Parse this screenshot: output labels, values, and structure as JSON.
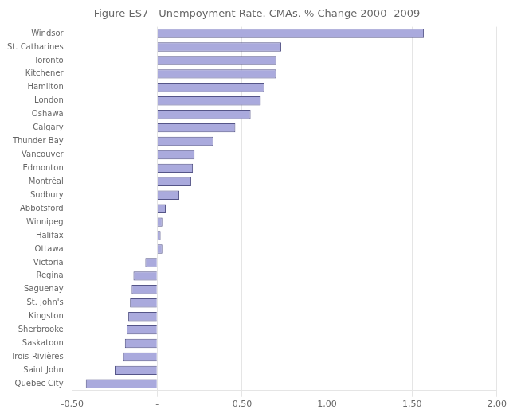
{
  "chart_data": {
    "type": "bar",
    "orientation": "horizontal",
    "title": "Figure ES7 - Unempoyment Rate. CMAs. % Change 2000- 2009",
    "categories": [
      "Windsor",
      "St. Catharines",
      "Toronto",
      "Kitchener",
      "Hamilton",
      "London",
      "Oshawa",
      "Calgary",
      "Thunder Bay",
      "Vancouver",
      "Edmonton",
      "Montréal",
      "Sudbury",
      "Abbotsford",
      "Winnipeg",
      "Halifax",
      "Ottawa",
      "Victoria",
      "Regina",
      "Saguenay",
      "St. John's",
      "Kingston",
      "Sherbrooke",
      "Saskatoon",
      "Trois-Rivières",
      "Saint John",
      "Quebec City"
    ],
    "values": [
      1.57,
      0.73,
      0.7,
      0.7,
      0.63,
      0.61,
      0.55,
      0.46,
      0.33,
      0.22,
      0.21,
      0.2,
      0.13,
      0.05,
      0.03,
      0.02,
      0.03,
      -0.07,
      -0.14,
      -0.15,
      -0.16,
      -0.17,
      -0.18,
      -0.19,
      -0.2,
      -0.25,
      -0.42
    ],
    "color": "#aaaadd",
    "xlim": [
      -0.5,
      2.0
    ],
    "xticks": [
      {
        "value": -0.5,
        "label": "-0,50"
      },
      {
        "value": 0.0,
        "label": "-"
      },
      {
        "value": 0.5,
        "label": "0,50"
      },
      {
        "value": 1.0,
        "label": "1,00"
      },
      {
        "value": 1.5,
        "label": "1,50"
      },
      {
        "value": 2.0,
        "label": "2,00"
      }
    ],
    "grid": true
  }
}
